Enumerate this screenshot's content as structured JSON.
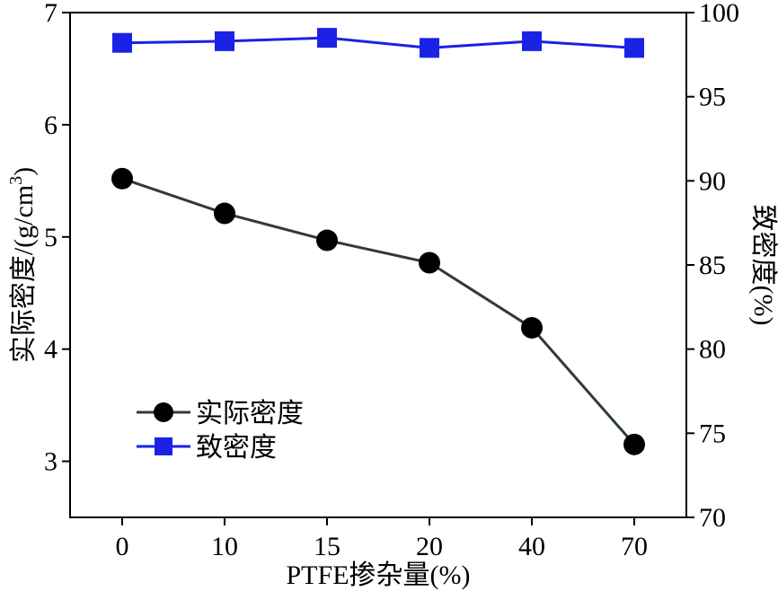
{
  "chart_data": {
    "type": "line",
    "categories": [
      "0",
      "10",
      "15",
      "20",
      "40",
      "70"
    ],
    "xlabel": "PTFE掺杂量(%)",
    "ylabel_left": "实际密度/(g/cm",
    "ylabel_left_sup": "3",
    "ylabel_left_close": ")",
    "ylabel_right": "致密度(%)",
    "ylim_left": [
      2.5,
      7
    ],
    "yticks_left": [
      3,
      4,
      5,
      6,
      7
    ],
    "ylim_right": [
      70,
      100
    ],
    "yticks_right": [
      70,
      75,
      80,
      85,
      90,
      95,
      100
    ],
    "legend_position": "lower-left",
    "series": [
      {
        "name": "实际密度",
        "axis": "left",
        "marker": "circle",
        "color": "#000000",
        "line_color": "#2f3a3d",
        "values": [
          5.52,
          5.21,
          4.97,
          4.77,
          4.19,
          3.15
        ]
      },
      {
        "name": "致密度",
        "axis": "right",
        "marker": "square",
        "color": "#1a22e6",
        "line_color": "#1a22e6",
        "values": [
          98.2,
          98.3,
          98.5,
          97.9,
          98.3,
          97.9
        ]
      }
    ]
  }
}
